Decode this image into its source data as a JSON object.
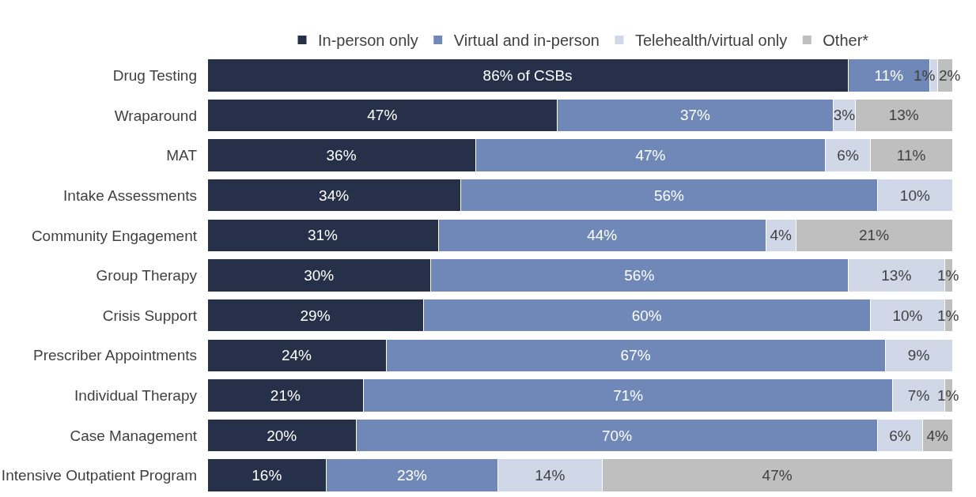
{
  "chart_data": {
    "type": "bar",
    "orientation": "horizontal",
    "stacked": true,
    "legend": "top",
    "tick_labels": "y",
    "xlim": [
      0,
      100
    ],
    "categories": [
      "Drug Testing",
      "Wraparound",
      "MAT",
      "Intake Assessments",
      "Community Engagement",
      "Group Therapy",
      "Crisis Support",
      "Prescriber Appointments",
      "Individual Therapy",
      "Case Management",
      "Intensive Outpatient Program"
    ],
    "series": [
      {
        "name": "In-person only",
        "color": "#263048",
        "values": [
          86,
          47,
          36,
          34,
          31,
          30,
          29,
          24,
          21,
          20,
          16
        ],
        "value_labels": [
          "86% of CSBs",
          "47%",
          "36%",
          "34%",
          "31%",
          "30%",
          "29%",
          "24%",
          "21%",
          "20%",
          "16%"
        ]
      },
      {
        "name": "Virtual and in-person",
        "color": "#6f88b8",
        "values": [
          11,
          37,
          47,
          56,
          44,
          56,
          60,
          67,
          71,
          70,
          23
        ],
        "value_labels": [
          "11%",
          "37%",
          "47%",
          "56%",
          "44%",
          "56%",
          "60%",
          "67%",
          "71%",
          "70%",
          "23%"
        ]
      },
      {
        "name": "Telehealth/virtual only",
        "color": "#d0d8e8",
        "values": [
          1,
          3,
          6,
          10,
          4,
          13,
          10,
          9,
          7,
          6,
          14
        ],
        "value_labels": [
          "1%",
          "3%",
          "6%",
          "10%",
          "4%",
          "13%",
          "10%",
          "9%",
          "7%",
          "6%",
          "14%"
        ]
      },
      {
        "name": "Other*",
        "color": "#bfbfbf",
        "values": [
          2,
          13,
          11,
          null,
          21,
          1,
          1,
          null,
          1,
          4,
          47
        ],
        "value_labels": [
          "2%",
          "13%",
          "11%",
          null,
          "21%",
          "1%",
          "1%",
          null,
          "1%",
          "4%",
          "47%"
        ]
      }
    ]
  }
}
